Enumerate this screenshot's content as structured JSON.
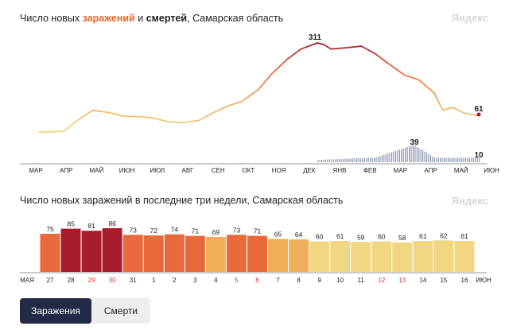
{
  "chart1": {
    "title": {
      "prefix": "Число новых ",
      "infections": "заражений",
      "connector": " и ",
      "deaths": "смертей",
      "suffix": ", Самарская область"
    },
    "brand": "Яндекс",
    "months": [
      "МАР",
      "АПР",
      "МАЙ",
      "ИЮН",
      "ИЮЛ",
      "АВГ",
      "СЕН",
      "ОКТ",
      "НОЯ",
      "ДЕК",
      "ЯНВ",
      "ФЕВ",
      "МАР",
      "АПР",
      "МАЙ",
      "ИЮН"
    ],
    "peak_label": "311",
    "last_label": "61",
    "deaths_peak_label": "39",
    "deaths_last_label": "10"
  },
  "chart2": {
    "title": "Число новых заражений в последние три недели, Самарская область",
    "brand": "Яндекс",
    "edge_left": "МАЯ",
    "edge_right": "ИЮН"
  },
  "colors": {
    "low": "#f2d783",
    "mid": "#f0ad5a",
    "high": "#e86a3c",
    "peak": "#a71d2e",
    "death_bars": "#8a94ad",
    "weekend": "#e0302c"
  },
  "chart_data": [
    {
      "type": "line",
      "title": "Число новых заражений и смертей, Самарская область",
      "x_range": [
        "2020-03",
        "2021-06-16"
      ],
      "series": [
        {
          "name": "заражений",
          "x": [
            "2020-03-20",
            "2020-04-15",
            "2020-05-01",
            "2020-05-15",
            "2020-06-01",
            "2020-06-15",
            "2020-07-01",
            "2020-07-15",
            "2020-08-01",
            "2020-08-15",
            "2020-09-01",
            "2020-09-15",
            "2020-10-01",
            "2020-10-15",
            "2020-11-01",
            "2020-11-15",
            "2020-12-01",
            "2020-12-15",
            "2021-01-01",
            "2021-01-08",
            "2021-01-15",
            "2021-02-01",
            "2021-02-15",
            "2021-03-01",
            "2021-03-15",
            "2021-04-01",
            "2021-04-15",
            "2021-05-01",
            "2021-05-10",
            "2021-05-20",
            "2021-06-01",
            "2021-06-16"
          ],
          "values": [
            4,
            8,
            50,
            80,
            72,
            60,
            58,
            54,
            40,
            38,
            45,
            70,
            95,
            110,
            150,
            205,
            255,
            290,
            311,
            305,
            290,
            295,
            300,
            275,
            240,
            200,
            185,
            140,
            80,
            90,
            70,
            61
          ]
        },
        {
          "name": "смертей",
          "x": [
            "2021-01-01",
            "2021-02-01",
            "2021-03-01",
            "2021-04-10",
            "2021-05-01",
            "2021-06-16"
          ],
          "values": [
            5,
            8,
            10,
            39,
            10,
            10
          ]
        }
      ],
      "annotations": [
        "311",
        "61",
        "39",
        "10"
      ]
    },
    {
      "type": "bar",
      "title": "Число новых заражений в последние три недели, Самарская область",
      "categories": [
        "27",
        "28",
        "29",
        "30",
        "31",
        "1",
        "2",
        "3",
        "4",
        "5",
        "6",
        "7",
        "8",
        "9",
        "10",
        "11",
        "12",
        "13",
        "14",
        "15",
        "16"
      ],
      "values": [
        75,
        85,
        81,
        86,
        73,
        72,
        74,
        71,
        69,
        73,
        71,
        65,
        64,
        60,
        61,
        59,
        60,
        58,
        61,
        62,
        61
      ],
      "weekend_categories": [
        "29",
        "30",
        "5",
        "6",
        "12",
        "13"
      ],
      "ylim": [
        0,
        90
      ]
    }
  ],
  "tabs": [
    {
      "label": "Заражения",
      "active": true
    },
    {
      "label": "Смерти",
      "active": false
    }
  ]
}
